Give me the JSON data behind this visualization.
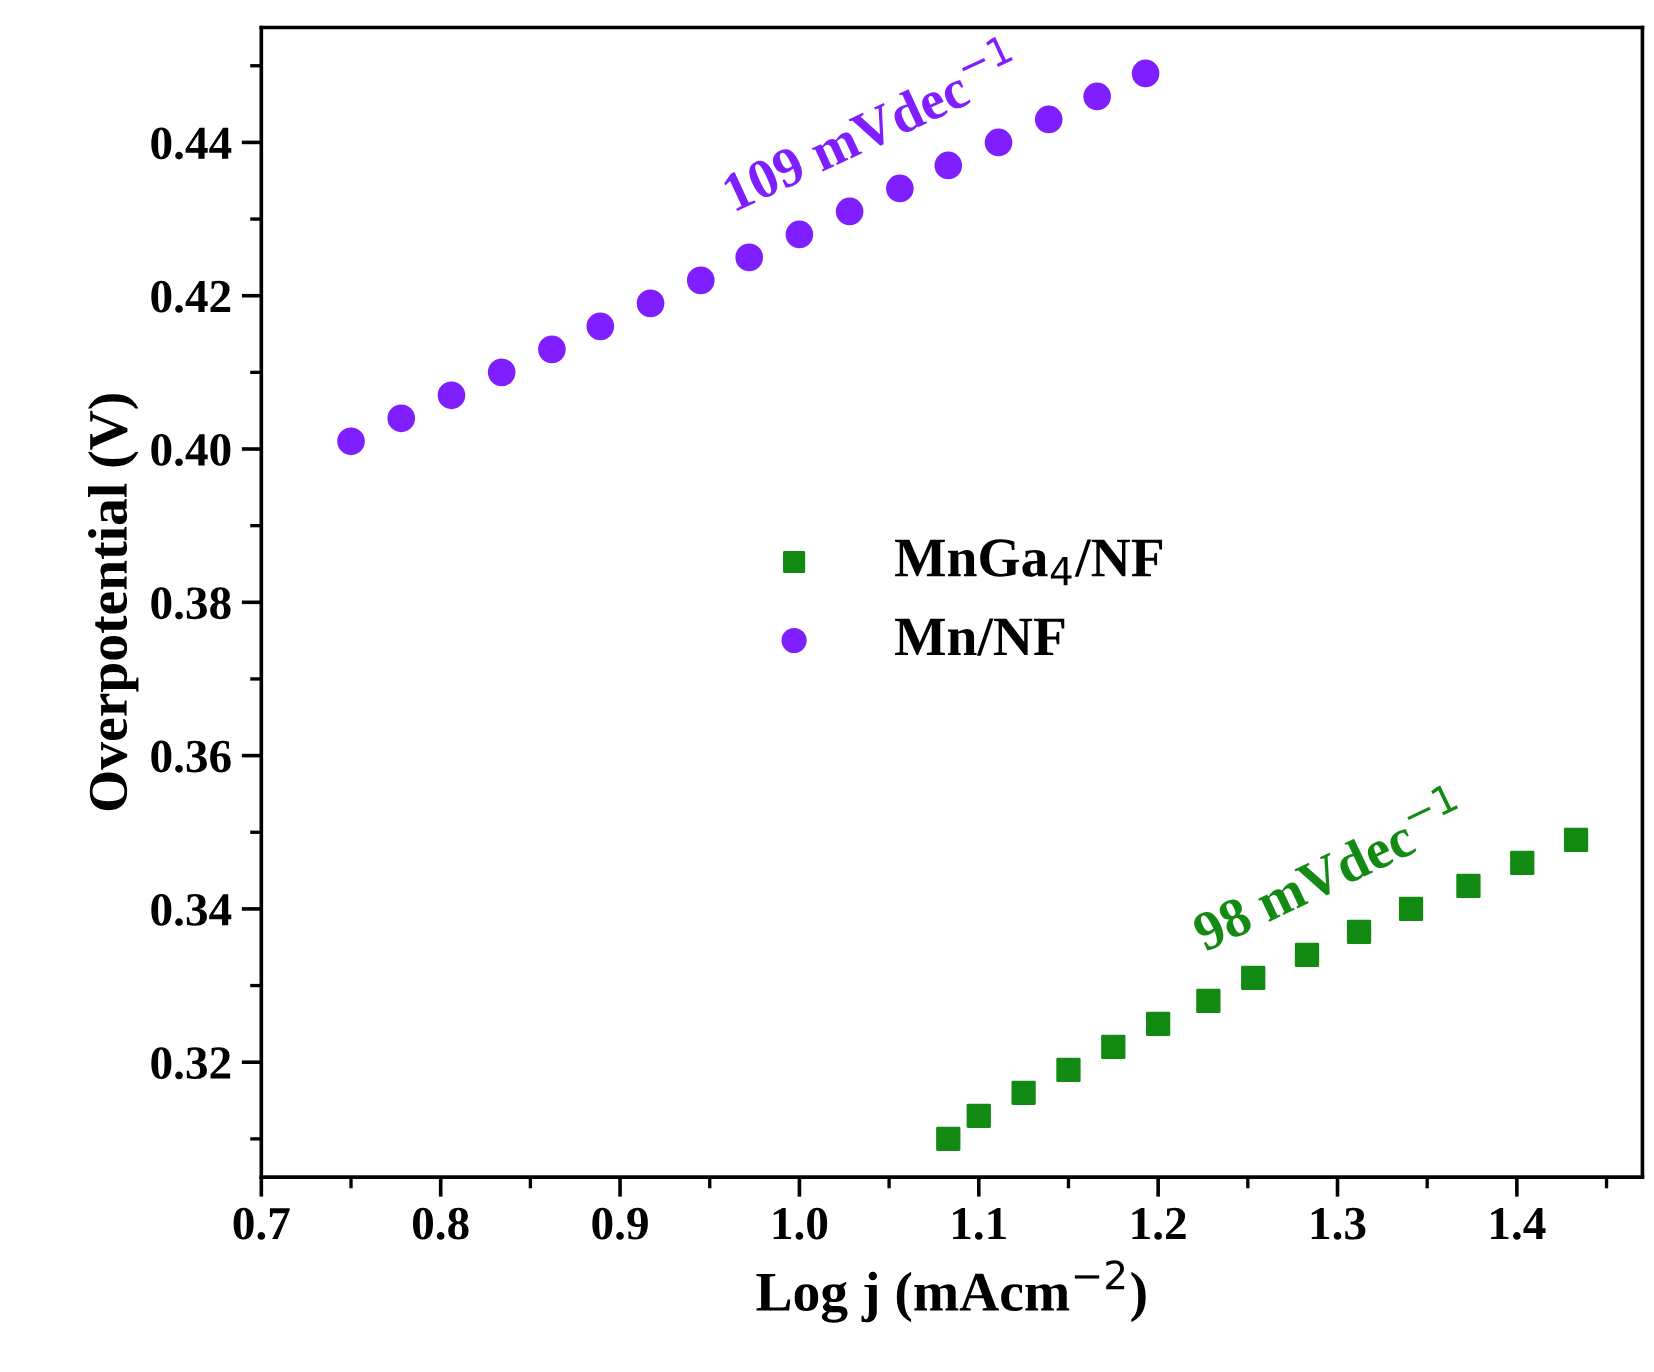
{
  "chart_data": {
    "type": "scatter",
    "xlabel": "Log j (mAcm$^{−2}$)",
    "ylabel": "Overpotential (V)",
    "series": [
      {
        "name": "MnGa$_{4}$/NF",
        "color": "#138a13",
        "marker": "square",
        "x": [
          1.083,
          1.1,
          1.125,
          1.15,
          1.175,
          1.2,
          1.228,
          1.253,
          1.283,
          1.312,
          1.341,
          1.373,
          1.403,
          1.433
        ],
        "values": [
          0.31,
          0.313,
          0.316,
          0.319,
          0.322,
          0.325,
          0.328,
          0.331,
          0.334,
          0.337,
          0.34,
          0.343,
          0.346,
          0.349
        ]
      },
      {
        "name": "Mn/NF",
        "color": "#7f1fff",
        "marker": "circle",
        "x": [
          0.75,
          0.778,
          0.806,
          0.834,
          0.862,
          0.889,
          0.917,
          0.945,
          0.972,
          1.0,
          1.028,
          1.056,
          1.083,
          1.111,
          1.139,
          1.166,
          1.193
        ],
        "values": [
          0.401,
          0.404,
          0.407,
          0.41,
          0.413,
          0.416,
          0.419,
          0.422,
          0.425,
          0.428,
          0.431,
          0.434,
          0.437,
          0.44,
          0.443,
          0.446,
          0.449
        ]
      }
    ],
    "annotations": [
      "98 mVdec$^{−1}$",
      "109 mVdec$^{−1}$"
    ],
    "xlim": [
      0.7,
      1.47
    ],
    "ylim": [
      0.305,
      0.455
    ],
    "xticks": [
      0.7,
      0.8,
      0.9,
      {
        "value": 1.0,
        "label": "1.0"
      },
      1.1,
      1.2,
      1.3,
      1.4
    ],
    "yticks": [
      0.32,
      0.34,
      0.36,
      0.38,
      {
        "value": 0.4,
        "label": "0.40"
      },
      0.42,
      0.44
    ],
    "legend": "center",
    "grid": false
  }
}
